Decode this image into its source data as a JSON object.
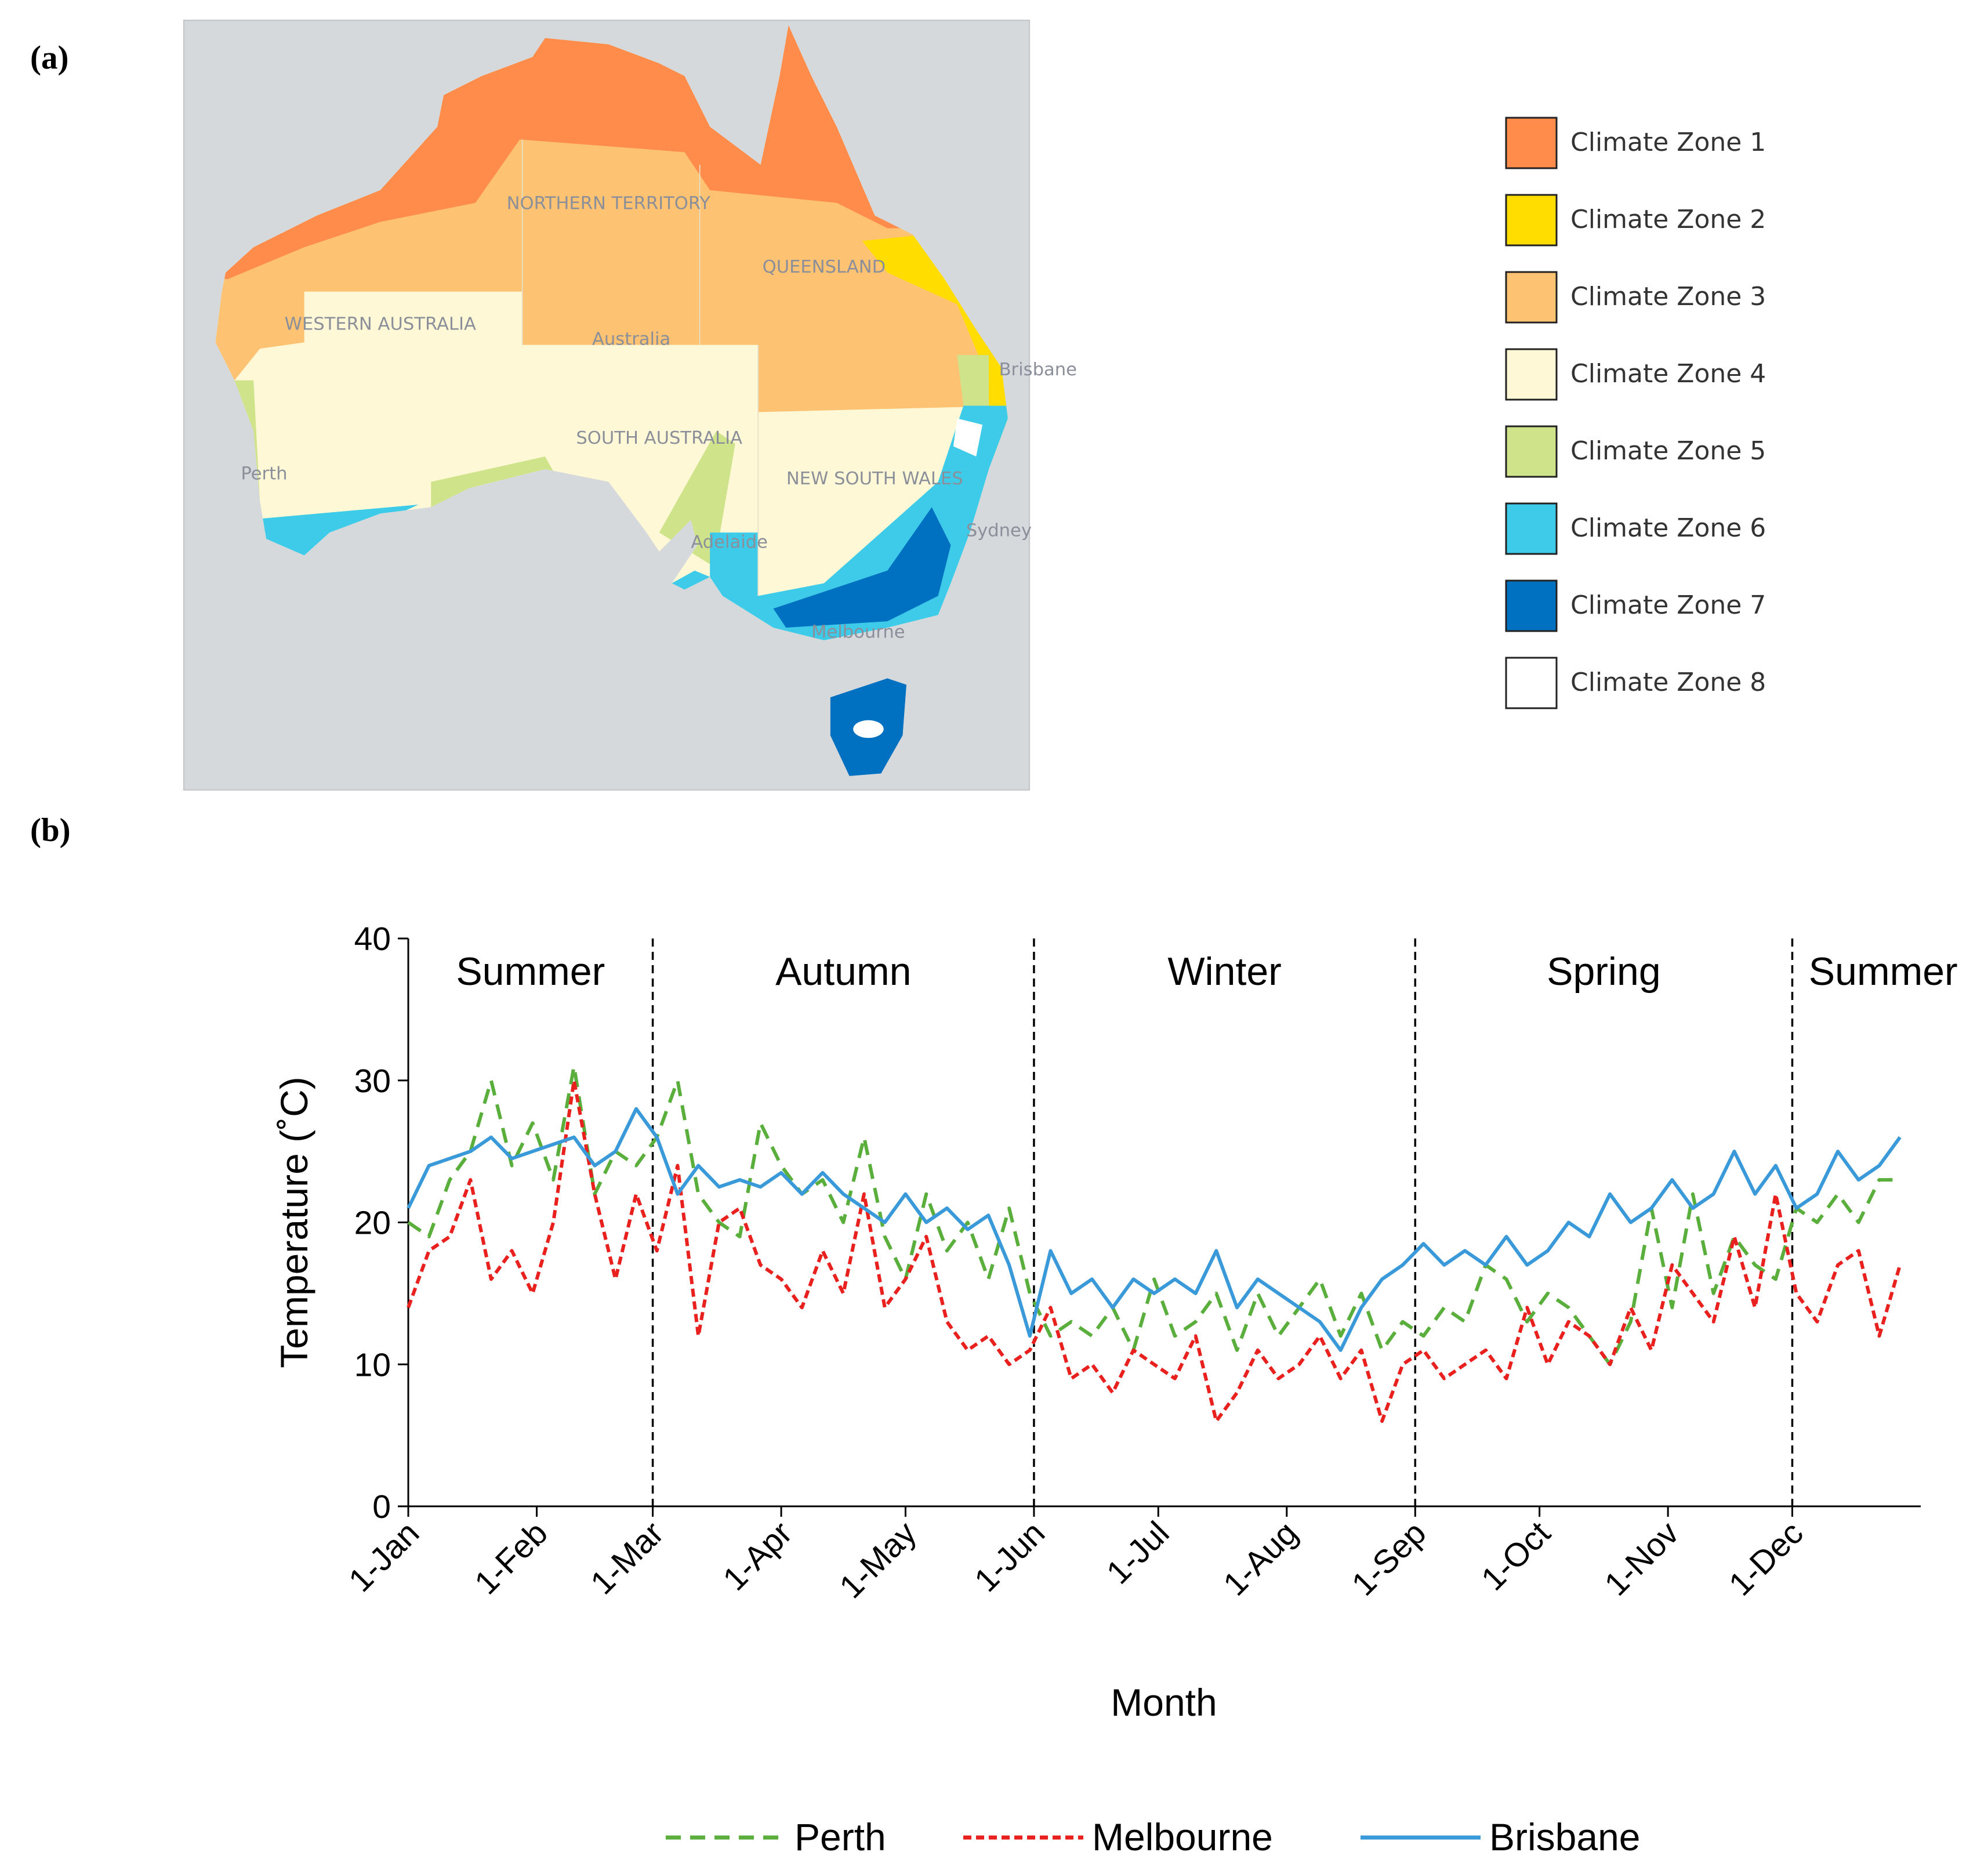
{
  "panels": {
    "a": "(a)",
    "b": "(b)"
  },
  "map": {
    "labels": [
      "WESTERN AUSTRALIA",
      "NORTHERN TERRITORY",
      "QUEENSLAND",
      "Australia",
      "SOUTH AUSTRALIA",
      "NEW SOUTH WALES",
      "Perth",
      "Adelaide",
      "Melbourne",
      "Sydney",
      "Brisbane"
    ],
    "legend": [
      {
        "label": "Climate Zone 1",
        "color": "#ff8c4b"
      },
      {
        "label": "Climate Zone 2",
        "color": "#ffdd00"
      },
      {
        "label": "Climate Zone 3",
        "color": "#fdc272"
      },
      {
        "label": "Climate Zone 4",
        "color": "#fff8d6"
      },
      {
        "label": "Climate Zone 5",
        "color": "#cfe38a"
      },
      {
        "label": "Climate Zone 6",
        "color": "#3ecbe9"
      },
      {
        "label": "Climate Zone 7",
        "color": "#0070c0"
      },
      {
        "label": "Climate Zone 8",
        "color": "#ffffff"
      }
    ]
  },
  "chart_data": {
    "type": "line",
    "x_label": "Month",
    "y_label": "Temperature (˚C)",
    "xlim": [
      0,
      365
    ],
    "ylim": [
      0,
      40
    ],
    "yticks": [
      0,
      10,
      20,
      30,
      40
    ],
    "xticks": [
      {
        "value": 0,
        "label": "1-Jan"
      },
      {
        "value": 31,
        "label": "1-Feb"
      },
      {
        "value": 59,
        "label": "1-Mar"
      },
      {
        "value": 90,
        "label": "1-Apr"
      },
      {
        "value": 120,
        "label": "1-May"
      },
      {
        "value": 151,
        "label": "1-Jun"
      },
      {
        "value": 181,
        "label": "1-Jul"
      },
      {
        "value": 212,
        "label": "1-Aug"
      },
      {
        "value": 243,
        "label": "1-Sep"
      },
      {
        "value": 273,
        "label": "1-Oct"
      },
      {
        "value": 304,
        "label": "1-Nov"
      },
      {
        "value": 334,
        "label": "1-Dec"
      }
    ],
    "season_dividers": [
      59,
      151,
      243,
      334
    ],
    "seasons": [
      "Summer",
      "Autumn",
      "Winter",
      "Spring",
      "Summer"
    ],
    "x": [
      0,
      5,
      10,
      15,
      20,
      25,
      30,
      35,
      40,
      45,
      50,
      55,
      60,
      65,
      70,
      75,
      80,
      85,
      90,
      95,
      100,
      105,
      110,
      115,
      120,
      125,
      130,
      135,
      140,
      145,
      150,
      155,
      160,
      165,
      170,
      175,
      180,
      185,
      190,
      195,
      200,
      205,
      210,
      215,
      220,
      225,
      230,
      235,
      240,
      245,
      250,
      255,
      260,
      265,
      270,
      275,
      280,
      285,
      290,
      295,
      300,
      305,
      310,
      315,
      320,
      325,
      330,
      335,
      340,
      345,
      350,
      355,
      360
    ],
    "series": [
      {
        "name": "Perth",
        "color": "#5aae3c",
        "line_style": "dashed",
        "values": [
          20,
          19,
          23,
          25,
          30,
          24,
          27,
          23,
          31,
          22,
          25,
          24,
          26,
          30,
          22,
          20,
          19,
          27,
          24,
          22,
          23,
          20,
          26,
          19,
          16,
          22,
          18,
          20,
          16,
          21,
          15,
          12,
          13,
          12,
          14,
          11,
          16,
          12,
          13,
          15,
          11,
          15,
          12,
          14,
          16,
          12,
          15,
          11,
          13,
          12,
          14,
          13,
          17,
          16,
          13,
          15,
          14,
          12,
          10,
          13,
          21,
          14,
          22,
          15,
          19,
          17,
          16,
          21,
          20,
          22,
          20,
          23,
          23
        ]
      },
      {
        "name": "Melbourne",
        "color": "#e8201e",
        "line_style": "dashed",
        "values": [
          14,
          18,
          19,
          23,
          16,
          18,
          15,
          20,
          30,
          22,
          16,
          22,
          18,
          24,
          12,
          20,
          21,
          17,
          16,
          14,
          18,
          15,
          22,
          14,
          16,
          19,
          13,
          11,
          12,
          10,
          11,
          14,
          9,
          10,
          8,
          11,
          10,
          9,
          12,
          6,
          8,
          11,
          9,
          10,
          12,
          9,
          11,
          6,
          10,
          11,
          9,
          10,
          11,
          9,
          14,
          10,
          13,
          12,
          10,
          14,
          11,
          17,
          15,
          13,
          19,
          14,
          22,
          15,
          13,
          17,
          18,
          12,
          17
        ]
      },
      {
        "name": "Brisbane",
        "color": "#3a9ad9",
        "line_style": "solid",
        "values": [
          21,
          24,
          24.5,
          25,
          26,
          24.5,
          25,
          25.5,
          26,
          24,
          25,
          28,
          26,
          22,
          24,
          22.5,
          23,
          22.5,
          23.5,
          22,
          23.5,
          22,
          21,
          20,
          22,
          20,
          21,
          19.5,
          20.5,
          17,
          12,
          18,
          15,
          16,
          14,
          16,
          15,
          16,
          15,
          18,
          14,
          16,
          15,
          14,
          13,
          11,
          14,
          16,
          17,
          18.5,
          17,
          18,
          17,
          19,
          17,
          18,
          20,
          19,
          22,
          20,
          21,
          23,
          21,
          22,
          25,
          22,
          24,
          21,
          22,
          25,
          23,
          24,
          26
        ]
      }
    ]
  }
}
